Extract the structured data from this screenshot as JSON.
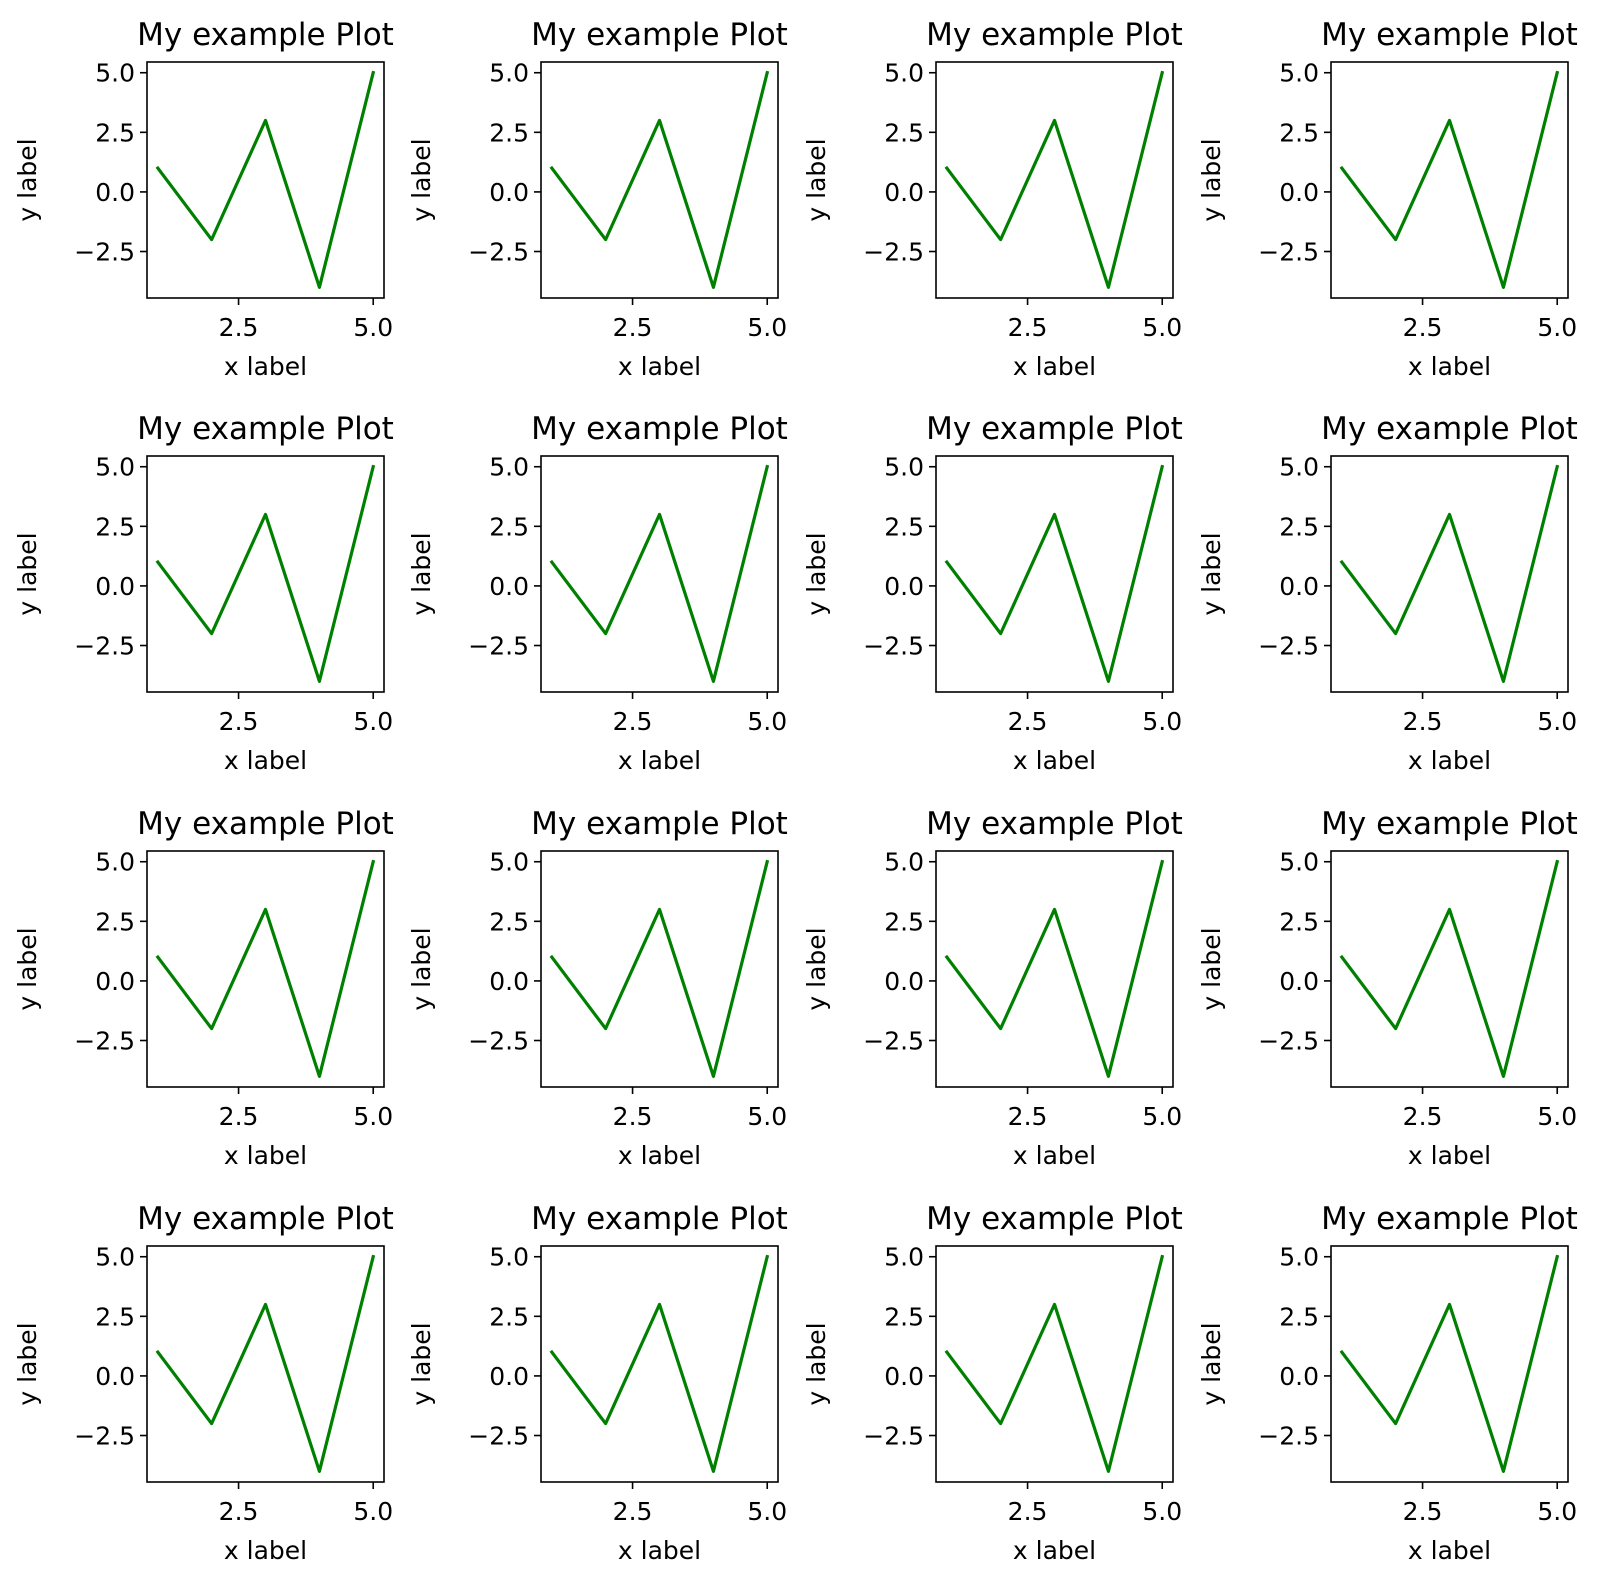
{
  "figure": {
    "rows": 4,
    "cols": 4
  },
  "line_color": "#008000",
  "chart_data": [
    {
      "type": "line",
      "title": "My example Plot",
      "xlabel": "x label",
      "ylabel": "y label",
      "x": [
        1,
        2,
        3,
        4,
        5
      ],
      "series": [
        {
          "name": "line",
          "values": [
            1,
            -2,
            3,
            -4,
            5
          ]
        }
      ],
      "xlim": [
        0.8,
        5.2
      ],
      "ylim": [
        -4.45,
        5.45
      ],
      "xticks": [
        2.5,
        5.0
      ],
      "xtick_labels": [
        "2.5",
        "5.0"
      ],
      "yticks": [
        -2.5,
        0.0,
        2.5,
        5.0
      ],
      "ytick_labels": [
        "−2.5",
        "0.0",
        "2.5",
        "5.0"
      ],
      "grid": false
    },
    {
      "type": "line",
      "title": "My example Plot",
      "xlabel": "x label",
      "ylabel": "y label",
      "x": [
        1,
        2,
        3,
        4,
        5
      ],
      "series": [
        {
          "name": "line",
          "values": [
            1,
            -2,
            3,
            -4,
            5
          ]
        }
      ],
      "xlim": [
        0.8,
        5.2
      ],
      "ylim": [
        -4.45,
        5.45
      ],
      "xticks": [
        2.5,
        5.0
      ],
      "xtick_labels": [
        "2.5",
        "5.0"
      ],
      "yticks": [
        -2.5,
        0.0,
        2.5,
        5.0
      ],
      "ytick_labels": [
        "−2.5",
        "0.0",
        "2.5",
        "5.0"
      ],
      "grid": false
    },
    {
      "type": "line",
      "title": "My example Plot",
      "xlabel": "x label",
      "ylabel": "y label",
      "x": [
        1,
        2,
        3,
        4,
        5
      ],
      "series": [
        {
          "name": "line",
          "values": [
            1,
            -2,
            3,
            -4,
            5
          ]
        }
      ],
      "xlim": [
        0.8,
        5.2
      ],
      "ylim": [
        -4.45,
        5.45
      ],
      "xticks": [
        2.5,
        5.0
      ],
      "xtick_labels": [
        "2.5",
        "5.0"
      ],
      "yticks": [
        -2.5,
        0.0,
        2.5,
        5.0
      ],
      "ytick_labels": [
        "−2.5",
        "0.0",
        "2.5",
        "5.0"
      ],
      "grid": false
    },
    {
      "type": "line",
      "title": "My example Plot",
      "xlabel": "x label",
      "ylabel": "y label",
      "x": [
        1,
        2,
        3,
        4,
        5
      ],
      "series": [
        {
          "name": "line",
          "values": [
            1,
            -2,
            3,
            -4,
            5
          ]
        }
      ],
      "xlim": [
        0.8,
        5.2
      ],
      "ylim": [
        -4.45,
        5.45
      ],
      "xticks": [
        2.5,
        5.0
      ],
      "xtick_labels": [
        "2.5",
        "5.0"
      ],
      "yticks": [
        -2.5,
        0.0,
        2.5,
        5.0
      ],
      "ytick_labels": [
        "−2.5",
        "0.0",
        "2.5",
        "5.0"
      ],
      "grid": false
    },
    {
      "type": "line",
      "title": "My example Plot",
      "xlabel": "x label",
      "ylabel": "y label",
      "x": [
        1,
        2,
        3,
        4,
        5
      ],
      "series": [
        {
          "name": "line",
          "values": [
            1,
            -2,
            3,
            -4,
            5
          ]
        }
      ],
      "xlim": [
        0.8,
        5.2
      ],
      "ylim": [
        -4.45,
        5.45
      ],
      "xticks": [
        2.5,
        5.0
      ],
      "xtick_labels": [
        "2.5",
        "5.0"
      ],
      "yticks": [
        -2.5,
        0.0,
        2.5,
        5.0
      ],
      "ytick_labels": [
        "−2.5",
        "0.0",
        "2.5",
        "5.0"
      ],
      "grid": false
    },
    {
      "type": "line",
      "title": "My example Plot",
      "xlabel": "x label",
      "ylabel": "y label",
      "x": [
        1,
        2,
        3,
        4,
        5
      ],
      "series": [
        {
          "name": "line",
          "values": [
            1,
            -2,
            3,
            -4,
            5
          ]
        }
      ],
      "xlim": [
        0.8,
        5.2
      ],
      "ylim": [
        -4.45,
        5.45
      ],
      "xticks": [
        2.5,
        5.0
      ],
      "xtick_labels": [
        "2.5",
        "5.0"
      ],
      "yticks": [
        -2.5,
        0.0,
        2.5,
        5.0
      ],
      "ytick_labels": [
        "−2.5",
        "0.0",
        "2.5",
        "5.0"
      ],
      "grid": false
    },
    {
      "type": "line",
      "title": "My example Plot",
      "xlabel": "x label",
      "ylabel": "y label",
      "x": [
        1,
        2,
        3,
        4,
        5
      ],
      "series": [
        {
          "name": "line",
          "values": [
            1,
            -2,
            3,
            -4,
            5
          ]
        }
      ],
      "xlim": [
        0.8,
        5.2
      ],
      "ylim": [
        -4.45,
        5.45
      ],
      "xticks": [
        2.5,
        5.0
      ],
      "xtick_labels": [
        "2.5",
        "5.0"
      ],
      "yticks": [
        -2.5,
        0.0,
        2.5,
        5.0
      ],
      "ytick_labels": [
        "−2.5",
        "0.0",
        "2.5",
        "5.0"
      ],
      "grid": false
    },
    {
      "type": "line",
      "title": "My example Plot",
      "xlabel": "x label",
      "ylabel": "y label",
      "x": [
        1,
        2,
        3,
        4,
        5
      ],
      "series": [
        {
          "name": "line",
          "values": [
            1,
            -2,
            3,
            -4,
            5
          ]
        }
      ],
      "xlim": [
        0.8,
        5.2
      ],
      "ylim": [
        -4.45,
        5.45
      ],
      "xticks": [
        2.5,
        5.0
      ],
      "xtick_labels": [
        "2.5",
        "5.0"
      ],
      "yticks": [
        -2.5,
        0.0,
        2.5,
        5.0
      ],
      "ytick_labels": [
        "−2.5",
        "0.0",
        "2.5",
        "5.0"
      ],
      "grid": false
    },
    {
      "type": "line",
      "title": "My example Plot",
      "xlabel": "x label",
      "ylabel": "y label",
      "x": [
        1,
        2,
        3,
        4,
        5
      ],
      "series": [
        {
          "name": "line",
          "values": [
            1,
            -2,
            3,
            -4,
            5
          ]
        }
      ],
      "xlim": [
        0.8,
        5.2
      ],
      "ylim": [
        -4.45,
        5.45
      ],
      "xticks": [
        2.5,
        5.0
      ],
      "xtick_labels": [
        "2.5",
        "5.0"
      ],
      "yticks": [
        -2.5,
        0.0,
        2.5,
        5.0
      ],
      "ytick_labels": [
        "−2.5",
        "0.0",
        "2.5",
        "5.0"
      ],
      "grid": false
    },
    {
      "type": "line",
      "title": "My example Plot",
      "xlabel": "x label",
      "ylabel": "y label",
      "x": [
        1,
        2,
        3,
        4,
        5
      ],
      "series": [
        {
          "name": "line",
          "values": [
            1,
            -2,
            3,
            -4,
            5
          ]
        }
      ],
      "xlim": [
        0.8,
        5.2
      ],
      "ylim": [
        -4.45,
        5.45
      ],
      "xticks": [
        2.5,
        5.0
      ],
      "xtick_labels": [
        "2.5",
        "5.0"
      ],
      "yticks": [
        -2.5,
        0.0,
        2.5,
        5.0
      ],
      "ytick_labels": [
        "−2.5",
        "0.0",
        "2.5",
        "5.0"
      ],
      "grid": false
    },
    {
      "type": "line",
      "title": "My example Plot",
      "xlabel": "x label",
      "ylabel": "y label",
      "x": [
        1,
        2,
        3,
        4,
        5
      ],
      "series": [
        {
          "name": "line",
          "values": [
            1,
            -2,
            3,
            -4,
            5
          ]
        }
      ],
      "xlim": [
        0.8,
        5.2
      ],
      "ylim": [
        -4.45,
        5.45
      ],
      "xticks": [
        2.5,
        5.0
      ],
      "xtick_labels": [
        "2.5",
        "5.0"
      ],
      "yticks": [
        -2.5,
        0.0,
        2.5,
        5.0
      ],
      "ytick_labels": [
        "−2.5",
        "0.0",
        "2.5",
        "5.0"
      ],
      "grid": false
    },
    {
      "type": "line",
      "title": "My example Plot",
      "xlabel": "x label",
      "ylabel": "y label",
      "x": [
        1,
        2,
        3,
        4,
        5
      ],
      "series": [
        {
          "name": "line",
          "values": [
            1,
            -2,
            3,
            -4,
            5
          ]
        }
      ],
      "xlim": [
        0.8,
        5.2
      ],
      "ylim": [
        -4.45,
        5.45
      ],
      "xticks": [
        2.5,
        5.0
      ],
      "xtick_labels": [
        "2.5",
        "5.0"
      ],
      "yticks": [
        -2.5,
        0.0,
        2.5,
        5.0
      ],
      "ytick_labels": [
        "−2.5",
        "0.0",
        "2.5",
        "5.0"
      ],
      "grid": false
    },
    {
      "type": "line",
      "title": "My example Plot",
      "xlabel": "x label",
      "ylabel": "y label",
      "x": [
        1,
        2,
        3,
        4,
        5
      ],
      "series": [
        {
          "name": "line",
          "values": [
            1,
            -2,
            3,
            -4,
            5
          ]
        }
      ],
      "xlim": [
        0.8,
        5.2
      ],
      "ylim": [
        -4.45,
        5.45
      ],
      "xticks": [
        2.5,
        5.0
      ],
      "xtick_labels": [
        "2.5",
        "5.0"
      ],
      "yticks": [
        -2.5,
        0.0,
        2.5,
        5.0
      ],
      "ytick_labels": [
        "−2.5",
        "0.0",
        "2.5",
        "5.0"
      ],
      "grid": false
    },
    {
      "type": "line",
      "title": "My example Plot",
      "xlabel": "x label",
      "ylabel": "y label",
      "x": [
        1,
        2,
        3,
        4,
        5
      ],
      "series": [
        {
          "name": "line",
          "values": [
            1,
            -2,
            3,
            -4,
            5
          ]
        }
      ],
      "xlim": [
        0.8,
        5.2
      ],
      "ylim": [
        -4.45,
        5.45
      ],
      "xticks": [
        2.5,
        5.0
      ],
      "xtick_labels": [
        "2.5",
        "5.0"
      ],
      "yticks": [
        -2.5,
        0.0,
        2.5,
        5.0
      ],
      "ytick_labels": [
        "−2.5",
        "0.0",
        "2.5",
        "5.0"
      ],
      "grid": false
    },
    {
      "type": "line",
      "title": "My example Plot",
      "xlabel": "x label",
      "ylabel": "y label",
      "x": [
        1,
        2,
        3,
        4,
        5
      ],
      "series": [
        {
          "name": "line",
          "values": [
            1,
            -2,
            3,
            -4,
            5
          ]
        }
      ],
      "xlim": [
        0.8,
        5.2
      ],
      "ylim": [
        -4.45,
        5.45
      ],
      "xticks": [
        2.5,
        5.0
      ],
      "xtick_labels": [
        "2.5",
        "5.0"
      ],
      "yticks": [
        -2.5,
        0.0,
        2.5,
        5.0
      ],
      "ytick_labels": [
        "−2.5",
        "0.0",
        "2.5",
        "5.0"
      ],
      "grid": false
    },
    {
      "type": "line",
      "title": "My example Plot",
      "xlabel": "x label",
      "ylabel": "y label",
      "x": [
        1,
        2,
        3,
        4,
        5
      ],
      "series": [
        {
          "name": "line",
          "values": [
            1,
            -2,
            3,
            -4,
            5
          ]
        }
      ],
      "xlim": [
        0.8,
        5.2
      ],
      "ylim": [
        -4.45,
        5.45
      ],
      "xticks": [
        2.5,
        5.0
      ],
      "xtick_labels": [
        "2.5",
        "5.0"
      ],
      "yticks": [
        -2.5,
        0.0,
        2.5,
        5.0
      ],
      "ytick_labels": [
        "−2.5",
        "0.0",
        "2.5",
        "5.0"
      ],
      "grid": false
    }
  ]
}
